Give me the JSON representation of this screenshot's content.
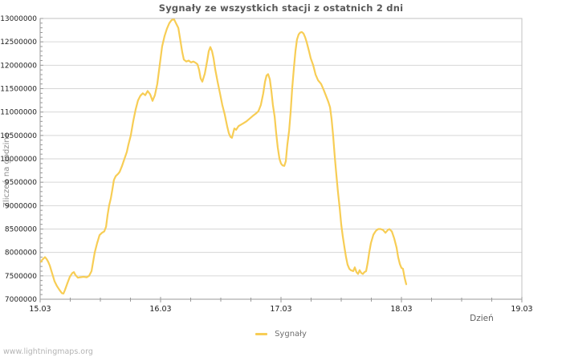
{
  "page": {
    "watermark": "www.lightningmaps.org"
  },
  "chart_data": {
    "type": "line",
    "title": "Sygnały ze wszystkich stacji z ostatnich 2 dni",
    "xlabel": "Dzień",
    "ylabel": "Zliczeń na godzinę",
    "grid": "horizontal-only",
    "legend_position": "bottom-center",
    "xlim": [
      0,
      4
    ],
    "ylim": [
      7000000,
      13000000
    ],
    "y_major_step": 500000,
    "y_minor_step": 100000,
    "x_minor_step": 0.25,
    "x_tick_values": [
      0,
      1,
      2,
      3,
      4
    ],
    "x_tick_labels": [
      "15.03",
      "16.03",
      "17.03",
      "18.03",
      "19.03"
    ],
    "colors": {
      "line": "#f7cd55",
      "grid": "#d6d6d6",
      "frame": "#c2c2c2",
      "axis": "#9a9a9a",
      "tick_label": "#1c1c1c"
    },
    "series": [
      {
        "name": "Sygnały",
        "color": "#f7cd55",
        "points": [
          [
            0.007,
            7800000
          ],
          [
            0.02,
            7850000
          ],
          [
            0.04,
            7900000
          ],
          [
            0.053,
            7860000
          ],
          [
            0.067,
            7800000
          ],
          [
            0.08,
            7720000
          ],
          [
            0.1,
            7550000
          ],
          [
            0.12,
            7380000
          ],
          [
            0.14,
            7280000
          ],
          [
            0.16,
            7200000
          ],
          [
            0.18,
            7130000
          ],
          [
            0.193,
            7120000
          ],
          [
            0.207,
            7200000
          ],
          [
            0.227,
            7350000
          ],
          [
            0.247,
            7480000
          ],
          [
            0.267,
            7560000
          ],
          [
            0.28,
            7580000
          ],
          [
            0.293,
            7520000
          ],
          [
            0.313,
            7460000
          ],
          [
            0.333,
            7470000
          ],
          [
            0.36,
            7480000
          ],
          [
            0.387,
            7470000
          ],
          [
            0.407,
            7500000
          ],
          [
            0.427,
            7600000
          ],
          [
            0.44,
            7800000
          ],
          [
            0.453,
            8000000
          ],
          [
            0.473,
            8200000
          ],
          [
            0.493,
            8370000
          ],
          [
            0.513,
            8420000
          ],
          [
            0.533,
            8450000
          ],
          [
            0.547,
            8550000
          ],
          [
            0.56,
            8800000
          ],
          [
            0.573,
            9000000
          ],
          [
            0.587,
            9160000
          ],
          [
            0.6,
            9350000
          ],
          [
            0.613,
            9550000
          ],
          [
            0.627,
            9630000
          ],
          [
            0.647,
            9680000
          ],
          [
            0.66,
            9720000
          ],
          [
            0.68,
            9850000
          ],
          [
            0.7,
            10000000
          ],
          [
            0.72,
            10150000
          ],
          [
            0.733,
            10300000
          ],
          [
            0.753,
            10500000
          ],
          [
            0.773,
            10800000
          ],
          [
            0.793,
            11050000
          ],
          [
            0.813,
            11250000
          ],
          [
            0.833,
            11350000
          ],
          [
            0.853,
            11400000
          ],
          [
            0.873,
            11360000
          ],
          [
            0.893,
            11450000
          ],
          [
            0.913,
            11380000
          ],
          [
            0.933,
            11240000
          ],
          [
            0.953,
            11360000
          ],
          [
            0.973,
            11600000
          ],
          [
            0.993,
            12000000
          ],
          [
            1.013,
            12400000
          ],
          [
            1.033,
            12620000
          ],
          [
            1.053,
            12780000
          ],
          [
            1.073,
            12900000
          ],
          [
            1.093,
            12970000
          ],
          [
            1.113,
            12980000
          ],
          [
            1.127,
            12900000
          ],
          [
            1.147,
            12800000
          ],
          [
            1.16,
            12600000
          ],
          [
            1.18,
            12280000
          ],
          [
            1.193,
            12120000
          ],
          [
            1.213,
            12080000
          ],
          [
            1.233,
            12100000
          ],
          [
            1.253,
            12060000
          ],
          [
            1.273,
            12080000
          ],
          [
            1.293,
            12050000
          ],
          [
            1.307,
            12020000
          ],
          [
            1.32,
            11900000
          ],
          [
            1.333,
            11720000
          ],
          [
            1.347,
            11650000
          ],
          [
            1.367,
            11820000
          ],
          [
            1.387,
            12100000
          ],
          [
            1.4,
            12300000
          ],
          [
            1.413,
            12390000
          ],
          [
            1.427,
            12300000
          ],
          [
            1.44,
            12150000
          ],
          [
            1.453,
            11920000
          ],
          [
            1.473,
            11650000
          ],
          [
            1.493,
            11400000
          ],
          [
            1.513,
            11150000
          ],
          [
            1.533,
            10950000
          ],
          [
            1.553,
            10700000
          ],
          [
            1.567,
            10550000
          ],
          [
            1.58,
            10470000
          ],
          [
            1.593,
            10450000
          ],
          [
            1.613,
            10650000
          ],
          [
            1.627,
            10620000
          ],
          [
            1.647,
            10700000
          ],
          [
            1.667,
            10730000
          ],
          [
            1.687,
            10760000
          ],
          [
            1.713,
            10800000
          ],
          [
            1.74,
            10860000
          ],
          [
            1.767,
            10920000
          ],
          [
            1.793,
            10970000
          ],
          [
            1.813,
            11020000
          ],
          [
            1.833,
            11150000
          ],
          [
            1.853,
            11400000
          ],
          [
            1.867,
            11650000
          ],
          [
            1.88,
            11780000
          ],
          [
            1.893,
            11810000
          ],
          [
            1.907,
            11700000
          ],
          [
            1.92,
            11450000
          ],
          [
            1.933,
            11150000
          ],
          [
            1.947,
            10900000
          ],
          [
            1.96,
            10550000
          ],
          [
            1.973,
            10250000
          ],
          [
            1.987,
            10000000
          ],
          [
            2.0,
            9900000
          ],
          [
            2.013,
            9860000
          ],
          [
            2.027,
            9850000
          ],
          [
            2.04,
            9950000
          ],
          [
            2.053,
            10300000
          ],
          [
            2.067,
            10600000
          ],
          [
            2.08,
            11000000
          ],
          [
            2.093,
            11500000
          ],
          [
            2.107,
            11950000
          ],
          [
            2.12,
            12300000
          ],
          [
            2.133,
            12550000
          ],
          [
            2.147,
            12660000
          ],
          [
            2.16,
            12700000
          ],
          [
            2.173,
            12710000
          ],
          [
            2.187,
            12680000
          ],
          [
            2.2,
            12600000
          ],
          [
            2.213,
            12500000
          ],
          [
            2.233,
            12300000
          ],
          [
            2.247,
            12150000
          ],
          [
            2.267,
            12000000
          ],
          [
            2.287,
            11800000
          ],
          [
            2.307,
            11680000
          ],
          [
            2.333,
            11600000
          ],
          [
            2.353,
            11480000
          ],
          [
            2.373,
            11350000
          ],
          [
            2.393,
            11220000
          ],
          [
            2.407,
            11100000
          ],
          [
            2.42,
            10850000
          ],
          [
            2.433,
            10500000
          ],
          [
            2.447,
            10020000
          ],
          [
            2.46,
            9650000
          ],
          [
            2.473,
            9300000
          ],
          [
            2.487,
            8950000
          ],
          [
            2.5,
            8600000
          ],
          [
            2.513,
            8350000
          ],
          [
            2.527,
            8100000
          ],
          [
            2.54,
            7900000
          ],
          [
            2.553,
            7740000
          ],
          [
            2.567,
            7650000
          ],
          [
            2.58,
            7620000
          ],
          [
            2.6,
            7600000
          ],
          [
            2.613,
            7680000
          ],
          [
            2.627,
            7580000
          ],
          [
            2.64,
            7540000
          ],
          [
            2.653,
            7620000
          ],
          [
            2.667,
            7560000
          ],
          [
            2.68,
            7540000
          ],
          [
            2.693,
            7580000
          ],
          [
            2.707,
            7600000
          ],
          [
            2.72,
            7780000
          ],
          [
            2.733,
            8000000
          ],
          [
            2.747,
            8200000
          ],
          [
            2.767,
            8380000
          ],
          [
            2.787,
            8460000
          ],
          [
            2.807,
            8500000
          ],
          [
            2.827,
            8500000
          ],
          [
            2.847,
            8480000
          ],
          [
            2.867,
            8420000
          ],
          [
            2.887,
            8480000
          ],
          [
            2.9,
            8500000
          ],
          [
            2.92,
            8450000
          ],
          [
            2.94,
            8300000
          ],
          [
            2.96,
            8100000
          ],
          [
            2.973,
            7900000
          ],
          [
            2.987,
            7750000
          ],
          [
            3.0,
            7670000
          ],
          [
            3.013,
            7650000
          ],
          [
            3.027,
            7450000
          ],
          [
            3.04,
            7320000
          ]
        ]
      }
    ]
  }
}
